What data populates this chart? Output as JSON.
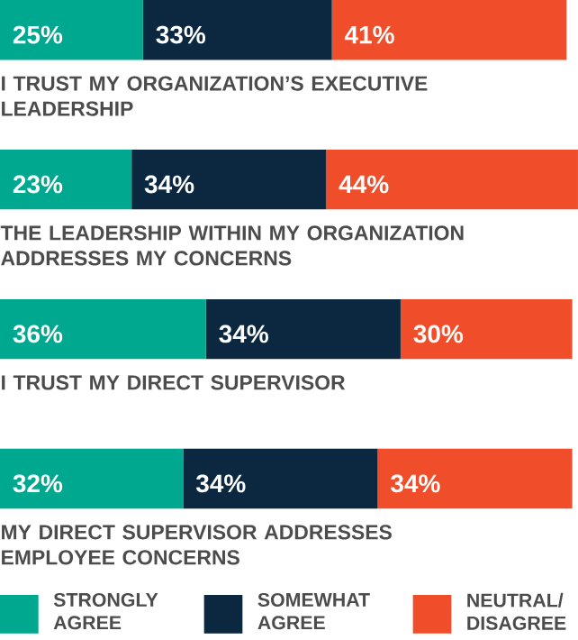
{
  "chart_data": {
    "type": "bar",
    "orientation": "horizontal",
    "stacked": true,
    "legend": "bottom",
    "categories": [
      "I TRUST MY ORGANIZATION’S EXECUTIVE LEADERSHIP",
      "THE LEADERSHIP WITHIN MY ORGANIZATION ADDRESSES MY CONCERNS",
      "I TRUST MY DIRECT SUPERVISOR",
      "MY DIRECT SUPERVISOR ADDRESSES EMPLOYEE CONCERNS"
    ],
    "series": [
      {
        "name": "STRONGLY AGREE",
        "color": "#00a88f",
        "values": [
          25,
          23,
          36,
          32
        ],
        "value_labels": [
          "25%",
          "23%",
          "36%",
          "32%"
        ]
      },
      {
        "name": "SOMEWHAT AGREE",
        "color": "#0c2840",
        "values": [
          33,
          34,
          34,
          34
        ],
        "value_labels": [
          "33%",
          "34%",
          "34%",
          "34%"
        ]
      },
      {
        "name": "NEUTRAL/ DISAGREE",
        "color": "#f04e2a",
        "values": [
          41,
          44,
          30,
          34
        ],
        "value_labels": [
          "41%",
          "44%",
          "30%",
          "34%"
        ]
      }
    ]
  }
}
